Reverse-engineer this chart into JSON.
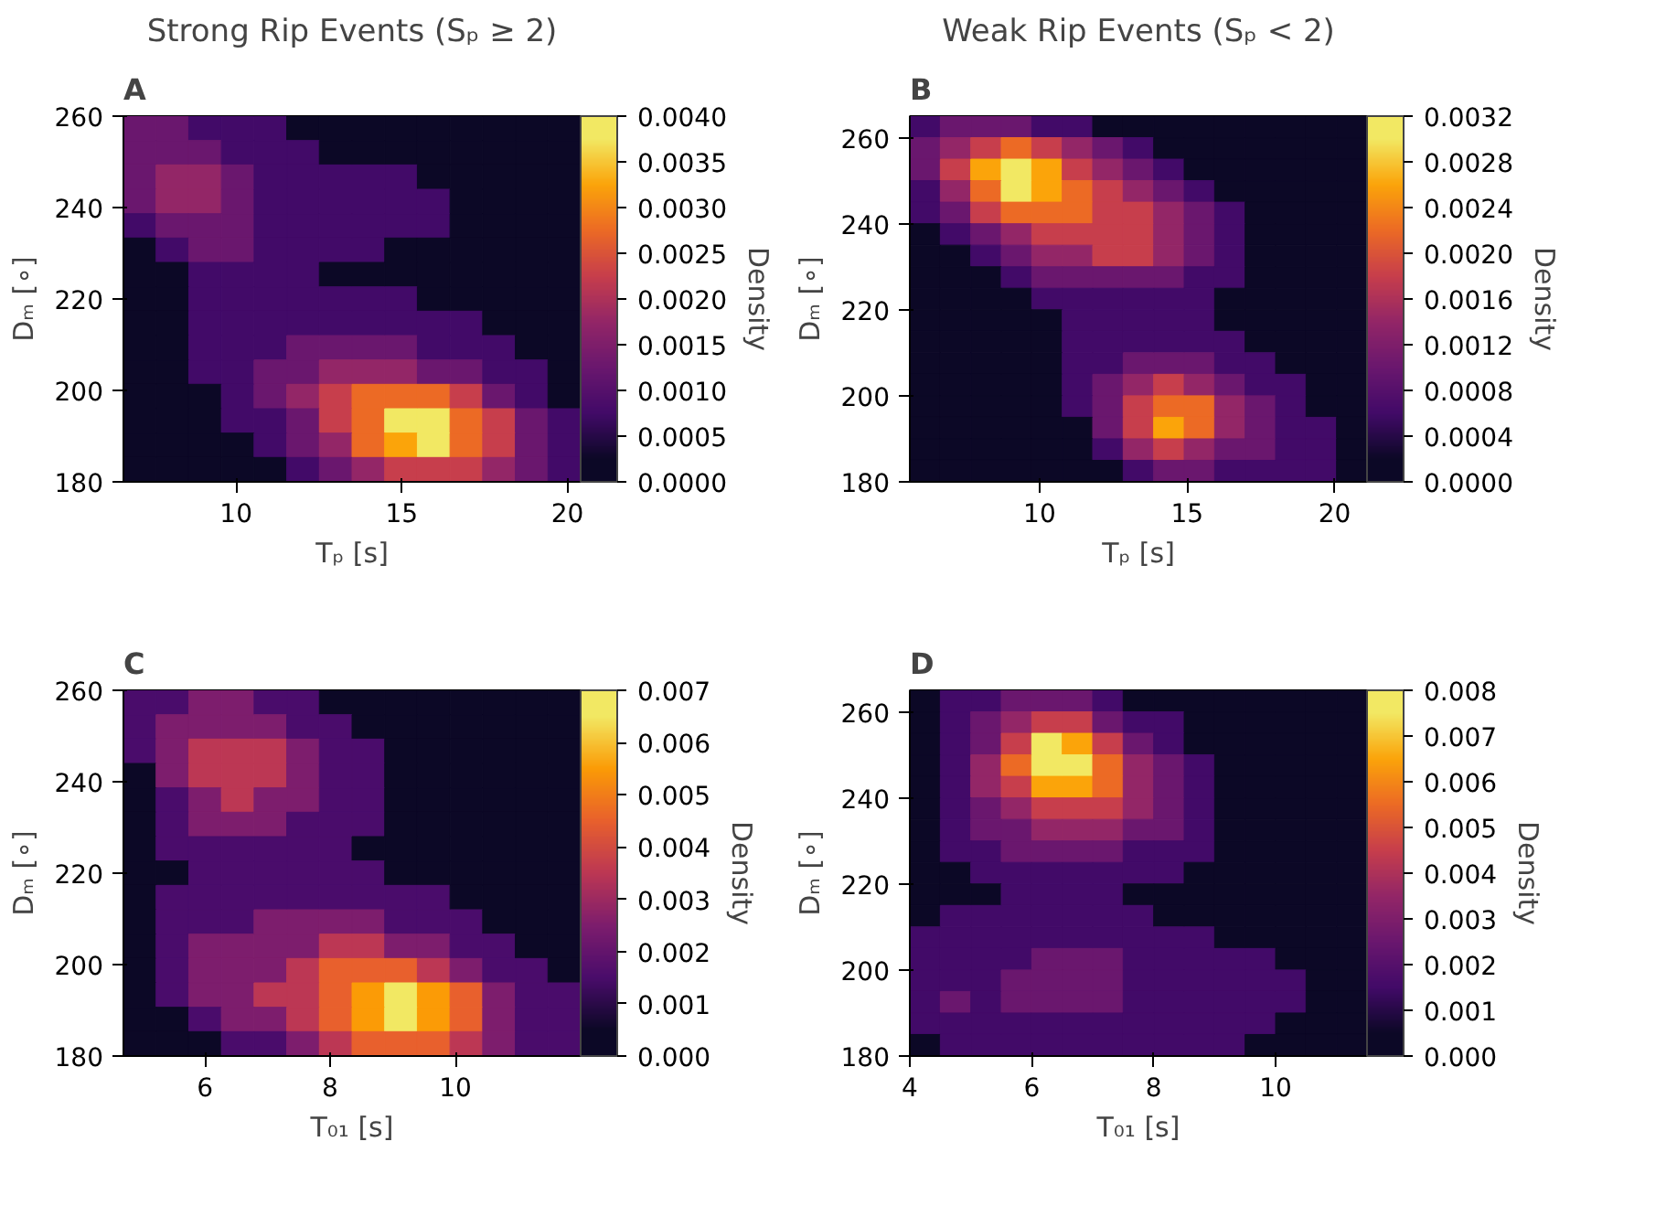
{
  "chart_data": [
    {
      "type": "heatmap",
      "title": "Strong Rip Events (Sₚ ≥ 2)",
      "subtitle": "A",
      "xlabel": "Tₚ [s]",
      "ylabel": "Dₘ [∘]",
      "clabel": "Density",
      "xlim": [
        6.6,
        20.4
      ],
      "ylim": [
        180,
        260
      ],
      "xticks": [
        10,
        15,
        20
      ],
      "yticks": [
        180,
        200,
        220,
        240,
        260
      ],
      "clim": [
        0,
        0.004
      ],
      "cticks": [
        {
          "value": 0,
          "label": "0.0000"
        },
        {
          "value": 0.0005,
          "label": "0.0005"
        },
        {
          "value": 0.001,
          "label": "0.0010"
        },
        {
          "value": 0.0015,
          "label": "0.0015"
        },
        {
          "value": 0.002,
          "label": "0.0020"
        },
        {
          "value": 0.0025,
          "label": "0.0025"
        },
        {
          "value": 0.003,
          "label": "0.0030"
        },
        {
          "value": 0.0035,
          "label": "0.0035"
        },
        {
          "value": 0.004,
          "label": "0.0040"
        }
      ],
      "colors": [
        "#0c0826",
        "#420a68",
        "#6a176e",
        "#932667",
        "#c73e4c",
        "#ec6a25",
        "#fba40a",
        "#f2e863"
      ],
      "cells": [
        [
          0.00125,
          0.00125,
          0.00075,
          0.00075,
          0.00075,
          0.00025,
          0.00025,
          0.00025,
          0.00025,
          0.00025,
          0.00025,
          0.00025,
          0.00025,
          0.00025
        ],
        [
          0.00125,
          0.00125,
          0.00125,
          0.00075,
          0.00075,
          0.00075,
          0.00025,
          0.00025,
          0.00025,
          0.00025,
          0.00025,
          0.00025,
          0.00025,
          0.00025
        ],
        [
          0.00125,
          0.00175,
          0.00175,
          0.00125,
          0.00075,
          0.00075,
          0.00075,
          0.00075,
          0.00075,
          0.00025,
          0.00025,
          0.00025,
          0.00025,
          0.00025
        ],
        [
          0.00125,
          0.00175,
          0.00175,
          0.00125,
          0.00075,
          0.00075,
          0.00075,
          0.00075,
          0.00075,
          0.00075,
          0.00025,
          0.00025,
          0.00025,
          0.00025
        ],
        [
          0.00075,
          0.00125,
          0.00125,
          0.00125,
          0.00075,
          0.00075,
          0.00075,
          0.00075,
          0.00075,
          0.00075,
          0.00025,
          0.00025,
          0.00025,
          0.00025
        ],
        [
          0.00025,
          0.00075,
          0.00125,
          0.00125,
          0.00075,
          0.00075,
          0.00075,
          0.00075,
          0.00025,
          0.00025,
          0.00025,
          0.00025,
          0.00025,
          0.00025
        ],
        [
          0.00025,
          0.00025,
          0.00075,
          0.00075,
          0.00075,
          0.00075,
          0.00025,
          0.00025,
          0.00025,
          0.00025,
          0.00025,
          0.00025,
          0.00025,
          0.00025
        ],
        [
          0.00025,
          0.00025,
          0.00075,
          0.00075,
          0.00075,
          0.00075,
          0.00075,
          0.00075,
          0.00075,
          0.00025,
          0.00025,
          0.00025,
          0.00025,
          0.00025
        ],
        [
          0.00025,
          0.00025,
          0.00075,
          0.00075,
          0.00075,
          0.00075,
          0.00075,
          0.00075,
          0.00075,
          0.00075,
          0.00075,
          0.00025,
          0.00025,
          0.00025
        ],
        [
          0.00025,
          0.00025,
          0.00075,
          0.00075,
          0.00075,
          0.00125,
          0.00125,
          0.00125,
          0.00125,
          0.00075,
          0.00075,
          0.00075,
          0.00025,
          0.00025
        ],
        [
          0.00025,
          0.00025,
          0.00075,
          0.00075,
          0.00125,
          0.00125,
          0.00175,
          0.00175,
          0.00175,
          0.00125,
          0.00125,
          0.00075,
          0.00075,
          0.00025
        ],
        [
          0.00025,
          0.00025,
          0.00025,
          0.00075,
          0.00125,
          0.00175,
          0.00225,
          0.00275,
          0.00275,
          0.00275,
          0.00225,
          0.00125,
          0.00075,
          0.00025
        ],
        [
          0.00025,
          0.00025,
          0.00025,
          0.00075,
          0.00075,
          0.00125,
          0.00225,
          0.00275,
          0.00375,
          0.00375,
          0.00275,
          0.00225,
          0.00125,
          0.00075
        ],
        [
          0.00025,
          0.00025,
          0.00025,
          0.00025,
          0.00075,
          0.00125,
          0.00175,
          0.00275,
          0.00325,
          0.00375,
          0.00275,
          0.00225,
          0.00125,
          0.00075
        ],
        [
          0.00025,
          0.00025,
          0.00025,
          0.00025,
          0.00025,
          0.00075,
          0.00125,
          0.00175,
          0.00225,
          0.00225,
          0.00225,
          0.00175,
          0.00125,
          0.00075
        ]
      ]
    },
    {
      "type": "heatmap",
      "title": "Weak Rip Events (Sₚ < 2)",
      "subtitle": "B",
      "xlabel": "Tₚ [s]",
      "ylabel": "Dₘ [∘]",
      "clabel": "Density",
      "xlim": [
        5.6,
        21.1
      ],
      "ylim": [
        180,
        265
      ],
      "xticks": [
        10,
        15,
        20
      ],
      "yticks": [
        180,
        200,
        220,
        240,
        260
      ],
      "clim": [
        0,
        0.0032
      ],
      "cticks": [
        {
          "value": 0,
          "label": "0.0000"
        },
        {
          "value": 0.0004,
          "label": "0.0004"
        },
        {
          "value": 0.0008,
          "label": "0.0008"
        },
        {
          "value": 0.0012,
          "label": "0.0012"
        },
        {
          "value": 0.0016,
          "label": "0.0016"
        },
        {
          "value": 0.002,
          "label": "0.0020"
        },
        {
          "value": 0.0024,
          "label": "0.0024"
        },
        {
          "value": 0.0028,
          "label": "0.0028"
        },
        {
          "value": 0.0032,
          "label": "0.0032"
        }
      ],
      "colors": [
        "#0c0826",
        "#420a68",
        "#6a176e",
        "#932667",
        "#c73e4c",
        "#ec6a25",
        "#fba40a",
        "#f2e863"
      ],
      "cells": [
        [
          0.0006,
          0.001,
          0.001,
          0.001,
          0.0006,
          0.0006,
          0.0002,
          0.0002,
          0.0002,
          0.0002,
          0.0002,
          0.0002,
          0.0002,
          0.0002,
          0.0002
        ],
        [
          0.001,
          0.0014,
          0.0018,
          0.0022,
          0.0018,
          0.0014,
          0.001,
          0.0006,
          0.0002,
          0.0002,
          0.0002,
          0.0002,
          0.0002,
          0.0002,
          0.0002
        ],
        [
          0.001,
          0.0018,
          0.0026,
          0.003,
          0.0026,
          0.0018,
          0.0014,
          0.001,
          0.0006,
          0.0002,
          0.0002,
          0.0002,
          0.0002,
          0.0002,
          0.0002
        ],
        [
          0.0006,
          0.0014,
          0.0022,
          0.003,
          0.0026,
          0.0022,
          0.0018,
          0.0014,
          0.001,
          0.0006,
          0.0002,
          0.0002,
          0.0002,
          0.0002,
          0.0002
        ],
        [
          0.0006,
          0.001,
          0.0018,
          0.0022,
          0.0022,
          0.0022,
          0.0018,
          0.0018,
          0.0014,
          0.001,
          0.0006,
          0.0002,
          0.0002,
          0.0002,
          0.0002
        ],
        [
          0.0002,
          0.0006,
          0.001,
          0.0014,
          0.0018,
          0.0018,
          0.0018,
          0.0018,
          0.0014,
          0.001,
          0.0006,
          0.0002,
          0.0002,
          0.0002,
          0.0002
        ],
        [
          0.0002,
          0.0002,
          0.0006,
          0.001,
          0.0014,
          0.0014,
          0.0018,
          0.0018,
          0.0014,
          0.001,
          0.0006,
          0.0002,
          0.0002,
          0.0002,
          0.0002
        ],
        [
          0.0002,
          0.0002,
          0.0002,
          0.0006,
          0.001,
          0.001,
          0.001,
          0.001,
          0.001,
          0.0006,
          0.0006,
          0.0002,
          0.0002,
          0.0002,
          0.0002
        ],
        [
          0.0002,
          0.0002,
          0.0002,
          0.0002,
          0.0006,
          0.0006,
          0.0006,
          0.0006,
          0.0006,
          0.0006,
          0.0002,
          0.0002,
          0.0002,
          0.0002,
          0.0002
        ],
        [
          0.0002,
          0.0002,
          0.0002,
          0.0002,
          0.0002,
          0.0006,
          0.0006,
          0.0006,
          0.0006,
          0.0006,
          0.0002,
          0.0002,
          0.0002,
          0.0002,
          0.0002
        ],
        [
          0.0002,
          0.0002,
          0.0002,
          0.0002,
          0.0002,
          0.0006,
          0.0006,
          0.0006,
          0.0006,
          0.0006,
          0.0006,
          0.0002,
          0.0002,
          0.0002,
          0.0002
        ],
        [
          0.0002,
          0.0002,
          0.0002,
          0.0002,
          0.0002,
          0.0006,
          0.0006,
          0.001,
          0.001,
          0.001,
          0.0006,
          0.0006,
          0.0002,
          0.0002,
          0.0002
        ],
        [
          0.0002,
          0.0002,
          0.0002,
          0.0002,
          0.0002,
          0.0006,
          0.001,
          0.0014,
          0.0018,
          0.0014,
          0.001,
          0.0006,
          0.0006,
          0.0002,
          0.0002
        ],
        [
          0.0002,
          0.0002,
          0.0002,
          0.0002,
          0.0002,
          0.0006,
          0.001,
          0.0018,
          0.0022,
          0.0022,
          0.0014,
          0.001,
          0.0006,
          0.0002,
          0.0002
        ],
        [
          0.0002,
          0.0002,
          0.0002,
          0.0002,
          0.0002,
          0.0002,
          0.001,
          0.0018,
          0.0026,
          0.0022,
          0.0014,
          0.001,
          0.0006,
          0.0006,
          0.0002
        ],
        [
          0.0002,
          0.0002,
          0.0002,
          0.0002,
          0.0002,
          0.0002,
          0.0006,
          0.0014,
          0.0018,
          0.0014,
          0.001,
          0.001,
          0.0006,
          0.0006,
          0.0002
        ],
        [
          0.0002,
          0.0002,
          0.0002,
          0.0002,
          0.0002,
          0.0002,
          0.0002,
          0.0006,
          0.001,
          0.001,
          0.0006,
          0.0006,
          0.0006,
          0.0006,
          0.0002
        ]
      ]
    },
    {
      "type": "heatmap",
      "subtitle": "C",
      "xlabel": "T₀₁ [s]",
      "ylabel": "Dₘ [∘]",
      "clabel": "Density",
      "xlim": [
        4.7,
        12.0
      ],
      "ylim": [
        180,
        260
      ],
      "xticks": [
        6,
        8,
        10
      ],
      "yticks": [
        180,
        200,
        220,
        240,
        260
      ],
      "clim": [
        0,
        0.007
      ],
      "cticks": [
        {
          "value": 0,
          "label": "0.000"
        },
        {
          "value": 0.001,
          "label": "0.001"
        },
        {
          "value": 0.002,
          "label": "0.002"
        },
        {
          "value": 0.003,
          "label": "0.003"
        },
        {
          "value": 0.004,
          "label": "0.004"
        },
        {
          "value": 0.005,
          "label": "0.005"
        },
        {
          "value": 0.006,
          "label": "0.006"
        },
        {
          "value": 0.007,
          "label": "0.007"
        }
      ],
      "colors": [
        "#0c0826",
        "#4a0c6b",
        "#7d1d6d",
        "#bc3754",
        "#e8602d",
        "#fb9b06",
        "#f2e863"
      ],
      "cells": [
        [
          0.0015,
          0.0015,
          0.0025,
          0.0025,
          0.0015,
          0.0015,
          0.0005,
          0.0005,
          0.0005,
          0.0005,
          0.0005,
          0.0005,
          0.0005,
          0.0005
        ],
        [
          0.0015,
          0.0025,
          0.0025,
          0.0025,
          0.0025,
          0.0015,
          0.0015,
          0.0005,
          0.0005,
          0.0005,
          0.0005,
          0.0005,
          0.0005,
          0.0005
        ],
        [
          0.0015,
          0.0025,
          0.0035,
          0.0035,
          0.0035,
          0.0025,
          0.0015,
          0.0015,
          0.0005,
          0.0005,
          0.0005,
          0.0005,
          0.0005,
          0.0005
        ],
        [
          0.0005,
          0.0025,
          0.0035,
          0.0035,
          0.0035,
          0.0025,
          0.0015,
          0.0015,
          0.0005,
          0.0005,
          0.0005,
          0.0005,
          0.0005,
          0.0005
        ],
        [
          0.0005,
          0.0015,
          0.0025,
          0.0035,
          0.0025,
          0.0025,
          0.0015,
          0.0015,
          0.0005,
          0.0005,
          0.0005,
          0.0005,
          0.0005,
          0.0005
        ],
        [
          0.0005,
          0.0015,
          0.0025,
          0.0025,
          0.0025,
          0.0015,
          0.0015,
          0.0015,
          0.0005,
          0.0005,
          0.0005,
          0.0005,
          0.0005,
          0.0005
        ],
        [
          0.0005,
          0.0015,
          0.0015,
          0.0015,
          0.0015,
          0.0015,
          0.0015,
          0.0005,
          0.0005,
          0.0005,
          0.0005,
          0.0005,
          0.0005,
          0.0005
        ],
        [
          0.0005,
          0.0005,
          0.0015,
          0.0015,
          0.0015,
          0.0015,
          0.0015,
          0.0015,
          0.0005,
          0.0005,
          0.0005,
          0.0005,
          0.0005,
          0.0005
        ],
        [
          0.0005,
          0.0015,
          0.0015,
          0.0015,
          0.0015,
          0.0015,
          0.0015,
          0.0015,
          0.0015,
          0.0015,
          0.0005,
          0.0005,
          0.0005,
          0.0005
        ],
        [
          0.0005,
          0.0015,
          0.0015,
          0.0015,
          0.0025,
          0.0025,
          0.0025,
          0.0025,
          0.0015,
          0.0015,
          0.0015,
          0.0005,
          0.0005,
          0.0005
        ],
        [
          0.0005,
          0.0015,
          0.0025,
          0.0025,
          0.0025,
          0.0025,
          0.0035,
          0.0035,
          0.0025,
          0.0025,
          0.0015,
          0.0015,
          0.0005,
          0.0005
        ],
        [
          0.0005,
          0.0015,
          0.0025,
          0.0025,
          0.0025,
          0.0035,
          0.0045,
          0.0045,
          0.0045,
          0.0035,
          0.0025,
          0.0015,
          0.0015,
          0.0005
        ],
        [
          0.0005,
          0.0015,
          0.0025,
          0.0025,
          0.0035,
          0.0035,
          0.0045,
          0.0055,
          0.0065,
          0.0055,
          0.0045,
          0.0025,
          0.0015,
          0.0015
        ],
        [
          0.0005,
          0.0005,
          0.0015,
          0.0025,
          0.0025,
          0.0035,
          0.0045,
          0.0055,
          0.0065,
          0.0055,
          0.0045,
          0.0025,
          0.0015,
          0.0015
        ],
        [
          0.0005,
          0.0005,
          0.0005,
          0.0015,
          0.0015,
          0.0025,
          0.0035,
          0.0045,
          0.0045,
          0.0045,
          0.0035,
          0.0025,
          0.0015,
          0.0015
        ]
      ]
    },
    {
      "type": "heatmap",
      "subtitle": "D",
      "xlabel": "T₀₁ [s]",
      "ylabel": "Dₘ [∘]",
      "clabel": "Density",
      "xlim": [
        4.0,
        11.5
      ],
      "ylim": [
        180,
        265
      ],
      "xticks": [
        4,
        6,
        8,
        10
      ],
      "yticks": [
        180,
        200,
        220,
        240,
        260
      ],
      "clim": [
        0,
        0.008
      ],
      "cticks": [
        {
          "value": 0,
          "label": "0.000"
        },
        {
          "value": 0.001,
          "label": "0.001"
        },
        {
          "value": 0.002,
          "label": "0.002"
        },
        {
          "value": 0.003,
          "label": "0.003"
        },
        {
          "value": 0.004,
          "label": "0.004"
        },
        {
          "value": 0.005,
          "label": "0.005"
        },
        {
          "value": 0.006,
          "label": "0.006"
        },
        {
          "value": 0.007,
          "label": "0.007"
        },
        {
          "value": 0.008,
          "label": "0.008"
        }
      ],
      "colors": [
        "#0c0826",
        "#420a68",
        "#6a176e",
        "#932667",
        "#c73e4c",
        "#ec6a25",
        "#fba40a",
        "#f2e863"
      ],
      "cells": [
        [
          0.0005,
          0.0015,
          0.0015,
          0.0025,
          0.0025,
          0.0025,
          0.0015,
          0.0005,
          0.0005,
          0.0005,
          0.0005,
          0.0005,
          0.0005,
          0.0005,
          0.0005
        ],
        [
          0.0005,
          0.0015,
          0.0025,
          0.0035,
          0.0045,
          0.0045,
          0.0025,
          0.0015,
          0.0015,
          0.0005,
          0.0005,
          0.0005,
          0.0005,
          0.0005,
          0.0005
        ],
        [
          0.0005,
          0.0015,
          0.0025,
          0.0045,
          0.0075,
          0.0065,
          0.0045,
          0.0025,
          0.0015,
          0.0005,
          0.0005,
          0.0005,
          0.0005,
          0.0005,
          0.0005
        ],
        [
          0.0005,
          0.0015,
          0.0035,
          0.0055,
          0.0075,
          0.0075,
          0.0055,
          0.0035,
          0.0025,
          0.0015,
          0.0005,
          0.0005,
          0.0005,
          0.0005,
          0.0005
        ],
        [
          0.0005,
          0.0015,
          0.0035,
          0.0045,
          0.0065,
          0.0065,
          0.0055,
          0.0035,
          0.0025,
          0.0015,
          0.0005,
          0.0005,
          0.0005,
          0.0005,
          0.0005
        ],
        [
          0.0005,
          0.0015,
          0.0025,
          0.0035,
          0.0045,
          0.0045,
          0.0045,
          0.0035,
          0.0025,
          0.0015,
          0.0005,
          0.0005,
          0.0005,
          0.0005,
          0.0005
        ],
        [
          0.0005,
          0.0015,
          0.0025,
          0.0025,
          0.0035,
          0.0035,
          0.0035,
          0.0025,
          0.0025,
          0.0015,
          0.0005,
          0.0005,
          0.0005,
          0.0005,
          0.0005
        ],
        [
          0.0005,
          0.0015,
          0.0015,
          0.0025,
          0.0025,
          0.0025,
          0.0025,
          0.0015,
          0.0015,
          0.0015,
          0.0005,
          0.0005,
          0.0005,
          0.0005,
          0.0005
        ],
        [
          0.0005,
          0.0005,
          0.0015,
          0.0015,
          0.0015,
          0.0015,
          0.0015,
          0.0015,
          0.0015,
          0.0005,
          0.0005,
          0.0005,
          0.0005,
          0.0005,
          0.0005
        ],
        [
          0.0005,
          0.0005,
          0.0005,
          0.0015,
          0.0015,
          0.0015,
          0.0015,
          0.0005,
          0.0005,
          0.0005,
          0.0005,
          0.0005,
          0.0005,
          0.0005,
          0.0005
        ],
        [
          0.0005,
          0.0015,
          0.0015,
          0.0015,
          0.0015,
          0.0015,
          0.0015,
          0.0015,
          0.0005,
          0.0005,
          0.0005,
          0.0005,
          0.0005,
          0.0005,
          0.0005
        ],
        [
          0.0015,
          0.0015,
          0.0015,
          0.0015,
          0.0015,
          0.0015,
          0.0015,
          0.0015,
          0.0015,
          0.0015,
          0.0005,
          0.0005,
          0.0005,
          0.0005,
          0.0005
        ],
        [
          0.0015,
          0.0015,
          0.0015,
          0.0015,
          0.0025,
          0.0025,
          0.0025,
          0.0015,
          0.0015,
          0.0015,
          0.0015,
          0.0015,
          0.0005,
          0.0005,
          0.0005
        ],
        [
          0.0015,
          0.0015,
          0.0015,
          0.0025,
          0.0025,
          0.0025,
          0.0025,
          0.0015,
          0.0015,
          0.0015,
          0.0015,
          0.0015,
          0.0015,
          0.0005,
          0.0005
        ],
        [
          0.0015,
          0.0025,
          0.0015,
          0.0025,
          0.0025,
          0.0025,
          0.0025,
          0.0015,
          0.0015,
          0.0015,
          0.0015,
          0.0015,
          0.0015,
          0.0005,
          0.0005
        ],
        [
          0.0015,
          0.0015,
          0.0015,
          0.0015,
          0.0015,
          0.0015,
          0.0015,
          0.0015,
          0.0015,
          0.0015,
          0.0015,
          0.0015,
          0.0005,
          0.0005,
          0.0005
        ],
        [
          0.0005,
          0.0015,
          0.0015,
          0.0015,
          0.0015,
          0.0015,
          0.0015,
          0.0015,
          0.0015,
          0.0015,
          0.0015,
          0.0005,
          0.0005,
          0.0005,
          0.0005
        ]
      ]
    }
  ]
}
